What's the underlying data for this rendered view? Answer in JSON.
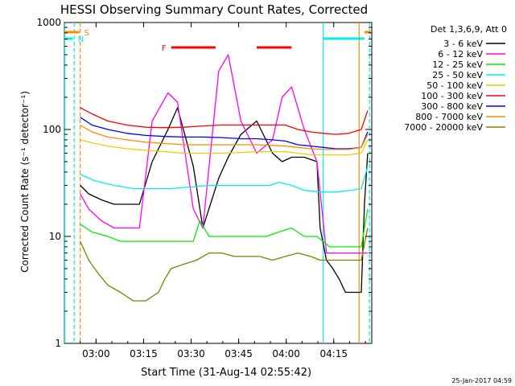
{
  "chart_data": {
    "type": "line",
    "title": "HESSI Observing Summary Count Rates, Corrected",
    "xlabel": "Start Time (31-Aug-14 02:55:42)",
    "ylabel": "Corrected Count Rate (s⁻¹ detector⁻¹)",
    "yscale": "log",
    "ylim": [
      1,
      1000
    ],
    "xlim_minutes": [
      -5.7,
      91.3
    ],
    "x_ticks": [
      {
        "label": "03:00",
        "m": 4.3
      },
      {
        "label": "03:15",
        "m": 19.3
      },
      {
        "label": "03:30",
        "m": 34.3
      },
      {
        "label": "03:45",
        "m": 49.3
      },
      {
        "label": "04:00",
        "m": 64.3
      },
      {
        "label": "04:15",
        "m": 79.3
      },
      {
        "label": "04:30",
        "m": 94.3
      }
    ],
    "y_ticks": [
      {
        "label": "1",
        "v": 1
      },
      {
        "label": "10",
        "v": 10
      },
      {
        "label": "100",
        "v": 100
      },
      {
        "label": "1000",
        "v": 1000
      }
    ],
    "legend_header": "Det 1,3,6,9, Att 0",
    "legend_placement": "right",
    "footer_date": "25-Jan-2017 04:59",
    "series": [
      {
        "name": "3 - 6 keV",
        "color": "#000000",
        "x": [
          -0.7,
          2,
          6,
          10,
          14,
          18,
          22,
          27,
          30,
          35,
          38,
          43,
          46,
          50,
          55,
          60,
          63,
          66,
          70,
          74,
          75,
          77,
          79,
          81,
          83,
          85,
          86,
          88,
          89,
          90
        ],
        "y": [
          30,
          25,
          22,
          20,
          20,
          20,
          50,
          100,
          160,
          45,
          12,
          35,
          55,
          90,
          120,
          60,
          50,
          55,
          55,
          50,
          12,
          6,
          5,
          4,
          3,
          3,
          3,
          3,
          20,
          60
        ]
      },
      {
        "name": "6 - 12 keV",
        "color": "#ff00ff",
        "x": [
          -0.7,
          2,
          6,
          10,
          14,
          18,
          22,
          27,
          30,
          35,
          38,
          43,
          46,
          50,
          55,
          60,
          63,
          66,
          70,
          74,
          77,
          80,
          83,
          86,
          88,
          90
        ],
        "y": [
          25,
          18,
          14,
          12,
          12,
          12,
          120,
          220,
          180,
          18,
          12,
          350,
          500,
          120,
          60,
          80,
          200,
          250,
          100,
          50,
          7,
          7,
          7,
          7,
          7,
          7
        ]
      },
      {
        "name": "12 - 25 keV",
        "color": "#00ee00",
        "x": [
          -0.7,
          3,
          8,
          12,
          18,
          24,
          30,
          35,
          37,
          40,
          45,
          50,
          55,
          58,
          62,
          66,
          70,
          74,
          78,
          82,
          86,
          88,
          90
        ],
        "y": [
          13,
          11,
          10,
          9,
          9,
          9,
          9,
          9,
          14,
          10,
          10,
          10,
          10,
          10,
          11,
          12,
          10,
          10,
          8,
          8,
          8,
          8,
          18
        ]
      },
      {
        "name": "25 - 50 keV",
        "color": "#00eeee",
        "x": [
          -0.7,
          4,
          10,
          16,
          22,
          28,
          34,
          40,
          45,
          50,
          55,
          59,
          62,
          66,
          70,
          75,
          80,
          85,
          88,
          90
        ],
        "y": [
          38,
          33,
          30,
          28,
          28,
          28,
          29,
          30,
          30,
          30,
          30,
          30,
          32,
          30,
          27,
          26,
          26,
          27,
          28,
          45
        ]
      },
      {
        "name": "50 - 100 keV",
        "color": "#eecc00",
        "x": [
          -0.7,
          3,
          8,
          14,
          20,
          26,
          32,
          38,
          44,
          50,
          55,
          60,
          64,
          68,
          72,
          76,
          80,
          84,
          88,
          90
        ],
        "y": [
          80,
          75,
          70,
          66,
          64,
          62,
          60,
          60,
          60,
          61,
          62,
          62,
          62,
          60,
          58,
          58,
          58,
          58,
          60,
          80
        ]
      },
      {
        "name": "100 - 300 keV",
        "color": "#ff0000",
        "x": [
          -0.7,
          3,
          8,
          14,
          20,
          26,
          32,
          38,
          44,
          50,
          55,
          60,
          64,
          68,
          72,
          76,
          80,
          84,
          88,
          90
        ],
        "y": [
          160,
          140,
          120,
          110,
          105,
          104,
          105,
          108,
          110,
          110,
          110,
          110,
          110,
          100,
          95,
          92,
          90,
          92,
          100,
          150
        ]
      },
      {
        "name": "300 - 800 keV",
        "color": "#0000ff",
        "x": [
          -0.7,
          3,
          8,
          14,
          20,
          26,
          32,
          38,
          44,
          50,
          55,
          60,
          64,
          68,
          72,
          76,
          80,
          84,
          88,
          90
        ],
        "y": [
          130,
          110,
          100,
          92,
          88,
          86,
          85,
          85,
          84,
          82,
          82,
          80,
          78,
          72,
          70,
          68,
          66,
          66,
          68,
          95
        ]
      },
      {
        "name": "800 - 7000 keV",
        "color": "#ff8800",
        "x": [
          -0.7,
          3,
          8,
          14,
          20,
          26,
          32,
          38,
          44,
          50,
          55,
          60,
          64,
          68,
          72,
          76,
          80,
          84,
          88,
          90
        ],
        "y": [
          110,
          95,
          85,
          80,
          76,
          74,
          72,
          72,
          72,
          72,
          72,
          71,
          70,
          68,
          66,
          65,
          65,
          65,
          68,
          90
        ]
      },
      {
        "name": "7000 - 20000 keV",
        "color": "#808000",
        "x": [
          -0.7,
          2,
          5,
          8,
          12,
          16,
          20,
          24,
          26,
          28,
          32,
          36,
          40,
          44,
          48,
          52,
          56,
          60,
          64,
          68,
          72,
          75,
          79,
          83,
          86,
          88,
          90
        ],
        "y": [
          9,
          6,
          4.5,
          3.5,
          3,
          2.5,
          2.5,
          3,
          4,
          5,
          5.5,
          6,
          7,
          7,
          6.5,
          6.5,
          6.5,
          6,
          6.5,
          7,
          6.5,
          6,
          6,
          6,
          6,
          6,
          12
        ]
      }
    ],
    "flags": [
      {
        "label": "S",
        "color": "#ff8800",
        "segments": [
          [
            -5.7,
            -1
          ],
          [
            89,
            91.3
          ]
        ]
      },
      {
        "label": "N",
        "color": "#00eeee",
        "segments": [
          [
            -5.7,
            -3
          ],
          [
            76,
            89
          ]
        ]
      },
      {
        "label": "F",
        "color": "#ff0000",
        "segments": [
          [
            28,
            42
          ],
          [
            55,
            66
          ]
        ]
      }
    ],
    "vlines": [
      {
        "m": -5.6,
        "color": "#00eeee",
        "dash": false
      },
      {
        "m": -2.6,
        "color": "#00eeee",
        "dash": true
      },
      {
        "m": -0.7,
        "color": "#ff8800",
        "dash": true
      },
      {
        "m": 76,
        "color": "#00eeee",
        "dash": false
      },
      {
        "m": 87.3,
        "color": "#ff8800",
        "dash": false
      },
      {
        "m": 90.6,
        "color": "#00eeee",
        "dash": true
      }
    ]
  }
}
